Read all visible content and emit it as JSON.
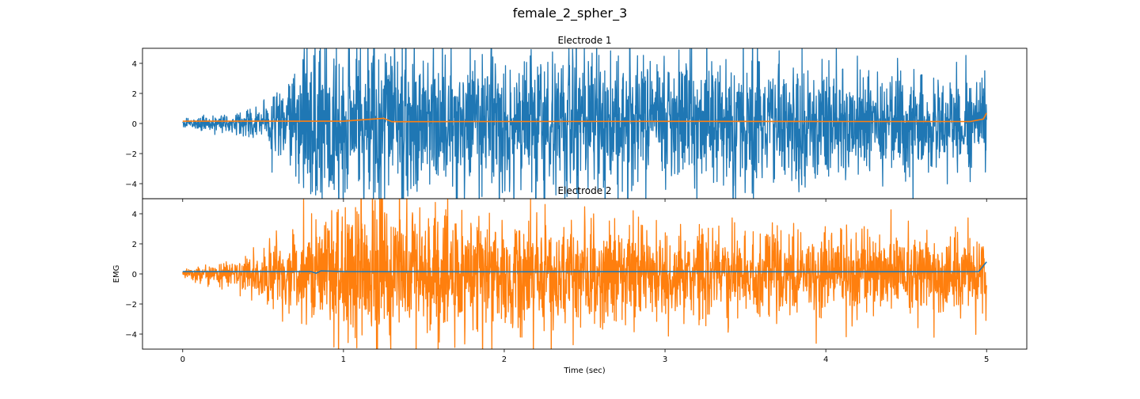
{
  "figure_title": "female_2_spher_3",
  "colors": {
    "blue": "#1f77b4",
    "orange": "#ff7f0e",
    "axes": "#000000"
  },
  "chart_data": [
    {
      "type": "line",
      "title": "Electrode 1",
      "xlabel": "",
      "ylabel": "",
      "xlim": [
        -0.25,
        5.25
      ],
      "ylim": [
        -5,
        5
      ],
      "xticks": [
        0,
        1,
        2,
        3,
        4,
        5
      ],
      "yticks": [
        -4,
        -2,
        0,
        2,
        4
      ],
      "show_xtick_labels": false,
      "grid": false,
      "series": [
        {
          "color": "#1f77b4",
          "kind": "raw_emg",
          "profile": {
            "t": [
              0,
              0.3,
              0.5,
              0.7,
              0.8,
              1.0,
              1.3,
              2.0,
              3.0,
              4.0,
              4.5,
              5.0
            ],
            "amp": [
              0.15,
              0.4,
              0.8,
              1.8,
              2.6,
              2.8,
              2.7,
              2.6,
              2.3,
              2.0,
              1.8,
              1.6
            ]
          }
        },
        {
          "color": "#ff7f0e",
          "kind": "envelope",
          "x": [
            0,
            0.5,
            1.0,
            1.25,
            1.3,
            2.0,
            3.0,
            4.0,
            4.9,
            4.98,
            5.0
          ],
          "y": [
            0.15,
            0.15,
            0.15,
            0.35,
            0.12,
            0.13,
            0.14,
            0.13,
            0.13,
            0.3,
            0.7
          ]
        }
      ]
    },
    {
      "type": "line",
      "title": "Electrode 2",
      "xlabel": "Time (sec)",
      "ylabel": "EMG",
      "xlim": [
        -0.25,
        5.25
      ],
      "ylim": [
        -5,
        5
      ],
      "xticks": [
        0,
        1,
        2,
        3,
        4,
        5
      ],
      "yticks": [
        -4,
        -2,
        0,
        2,
        4
      ],
      "show_xtick_labels": true,
      "grid": false,
      "series": [
        {
          "color": "#ff7f0e",
          "kind": "raw_emg",
          "profile": {
            "t": [
              0,
              0.3,
              0.6,
              0.8,
              1.0,
              1.3,
              1.5,
              2.0,
              3.0,
              4.0,
              5.0
            ],
            "amp": [
              0.15,
              0.5,
              1.2,
              2.0,
              2.5,
              2.6,
              2.4,
              2.0,
              1.6,
              1.4,
              1.4
            ]
          }
        },
        {
          "color": "#1f77b4",
          "kind": "envelope",
          "x": [
            0,
            0.8,
            0.83,
            0.86,
            1.0,
            2.0,
            3.0,
            4.0,
            4.95,
            5.0
          ],
          "y": [
            0.15,
            0.15,
            0.05,
            0.2,
            0.15,
            0.14,
            0.15,
            0.14,
            0.15,
            0.8
          ]
        }
      ]
    }
  ]
}
